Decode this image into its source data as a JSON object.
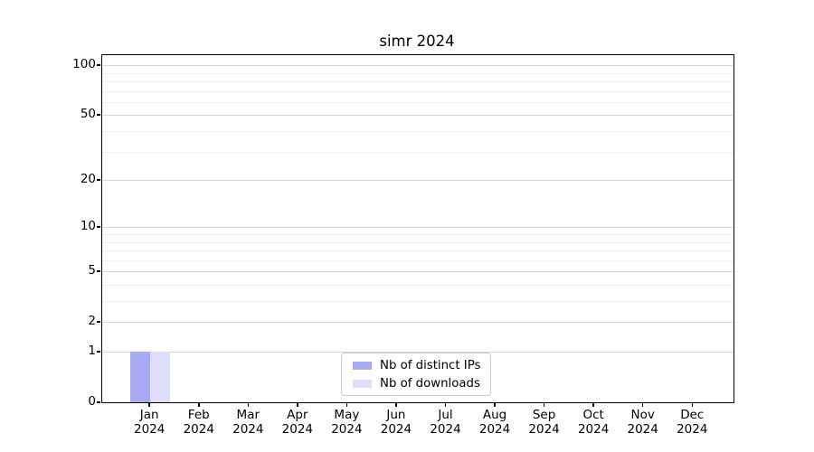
{
  "chart_data": {
    "type": "bar",
    "title": "simr 2024",
    "categories": [
      "Jan",
      "Feb",
      "Mar",
      "Apr",
      "May",
      "Jun",
      "Jul",
      "Aug",
      "Sep",
      "Oct",
      "Nov",
      "Dec"
    ],
    "category_year": "2024",
    "series": [
      {
        "name": "Nb of distinct IPs",
        "color": "#a9a9f4",
        "values": [
          1,
          0,
          0,
          0,
          0,
          0,
          0,
          0,
          0,
          0,
          0,
          0
        ]
      },
      {
        "name": "Nb of downloads",
        "color": "#dedef9",
        "values": [
          1,
          0,
          0,
          0,
          0,
          0,
          0,
          0,
          0,
          0,
          0,
          0
        ]
      }
    ],
    "yscale": "log1p",
    "yticks": [
      0,
      1,
      2,
      5,
      10,
      20,
      50,
      100
    ],
    "yminorticks": [
      3,
      4,
      6,
      7,
      8,
      9,
      30,
      40,
      60,
      70,
      80,
      90
    ],
    "ylim": [
      0,
      115
    ],
    "xlabel": "",
    "ylabel": "",
    "grid": "horizontal",
    "legend_position": "lower center",
    "colors": {
      "major_grid": "#d6d6d6",
      "minor_grid": "#f0f0f0",
      "axis": "#000000",
      "text": "#000000"
    }
  }
}
